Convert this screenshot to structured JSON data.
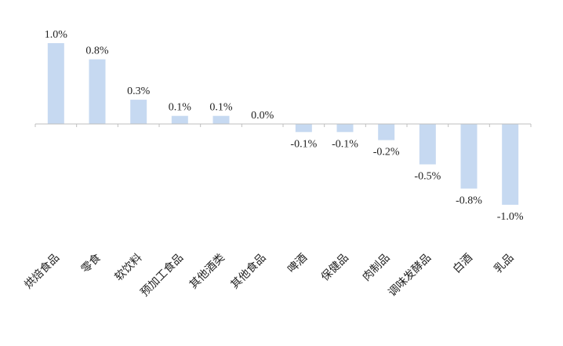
{
  "chart_data": {
    "type": "bar",
    "categories": [
      "烘焙食品",
      "零食",
      "软饮料",
      "预加工食品",
      "其他酒类",
      "其他食品",
      "啤酒",
      "保健品",
      "肉制品",
      "调味发酵品",
      "白酒",
      "乳品"
    ],
    "values": [
      1.0,
      0.8,
      0.3,
      0.1,
      0.1,
      0.0,
      -0.1,
      -0.1,
      -0.2,
      -0.5,
      -0.8,
      -1.0
    ],
    "value_labels": [
      "1.0%",
      "0.8%",
      "0.3%",
      "0.1%",
      "0.1%",
      "0.0%",
      "-0.1%",
      "-0.1%",
      "-0.2%",
      "-0.5%",
      "-0.8%",
      "-1.0%"
    ],
    "bar_color": "#c6d9f1",
    "axis_color": "#bfbfbf",
    "grid": false,
    "legend": "none"
  }
}
